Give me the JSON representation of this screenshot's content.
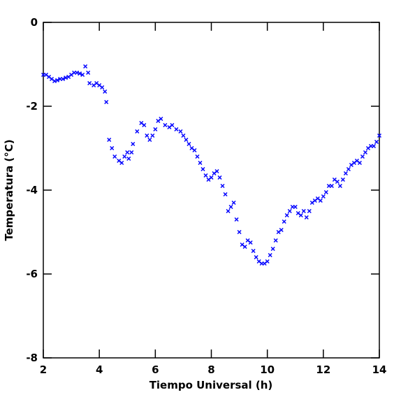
{
  "chart_data": {
    "type": "scatter",
    "x_label": "Tiempo Universal (h)",
    "y_label": "Temperatura (°C)",
    "xlim": [
      2,
      14
    ],
    "ylim": [
      -8,
      0
    ],
    "xticks": [
      2,
      4,
      6,
      8,
      10,
      12,
      14
    ],
    "yticks": [
      -8,
      -6,
      -4,
      -2,
      0
    ],
    "color": "#0000ff",
    "x": [
      2.0,
      2.1,
      2.2,
      2.3,
      2.4,
      2.5,
      2.6,
      2.7,
      2.8,
      2.9,
      3.0,
      3.1,
      3.2,
      3.3,
      3.4,
      3.5,
      3.6,
      3.65,
      3.8,
      3.9,
      4.0,
      4.1,
      4.2,
      4.25,
      4.35,
      4.45,
      4.55,
      4.7,
      4.8,
      4.9,
      5.0,
      5.05,
      5.15,
      5.2,
      5.35,
      5.5,
      5.6,
      5.7,
      5.8,
      5.9,
      6.0,
      6.1,
      6.2,
      6.35,
      6.5,
      6.6,
      6.75,
      6.9,
      7.0,
      7.1,
      7.2,
      7.3,
      7.4,
      7.5,
      7.6,
      7.7,
      7.8,
      7.9,
      8.0,
      8.1,
      8.2,
      8.3,
      8.4,
      8.5,
      8.6,
      8.7,
      8.8,
      8.9,
      9.0,
      9.1,
      9.2,
      9.3,
      9.4,
      9.5,
      9.6,
      9.7,
      9.8,
      9.9,
      10.0,
      10.1,
      10.2,
      10.3,
      10.4,
      10.5,
      10.6,
      10.7,
      10.8,
      10.9,
      11.0,
      11.1,
      11.2,
      11.3,
      11.4,
      11.5,
      11.6,
      11.7,
      11.8,
      11.9,
      12.0,
      12.1,
      12.2,
      12.3,
      12.4,
      12.5,
      12.6,
      12.7,
      12.8,
      12.9,
      13.0,
      13.1,
      13.2,
      13.3,
      13.4,
      13.5,
      13.6,
      13.7,
      13.8,
      13.9,
      14.0
    ],
    "values": [
      -1.25,
      -1.25,
      -1.3,
      -1.35,
      -1.4,
      -1.38,
      -1.35,
      -1.35,
      -1.32,
      -1.3,
      -1.25,
      -1.2,
      -1.2,
      -1.22,
      -1.25,
      -1.05,
      -1.2,
      -1.45,
      -1.5,
      -1.45,
      -1.5,
      -1.55,
      -1.65,
      -1.9,
      -2.8,
      -3.0,
      -3.2,
      -3.3,
      -3.35,
      -3.2,
      -3.1,
      -3.25,
      -3.1,
      -2.9,
      -2.6,
      -2.4,
      -2.45,
      -2.7,
      -2.8,
      -2.7,
      -2.55,
      -2.35,
      -2.3,
      -2.45,
      -2.5,
      -2.45,
      -2.55,
      -2.6,
      -2.7,
      -2.8,
      -2.9,
      -3.0,
      -3.05,
      -3.2,
      -3.35,
      -3.5,
      -3.65,
      -3.75,
      -3.7,
      -3.6,
      -3.55,
      -3.7,
      -3.9,
      -4.1,
      -4.5,
      -4.4,
      -4.3,
      -4.7,
      -5.0,
      -5.3,
      -5.35,
      -5.2,
      -5.25,
      -5.45,
      -5.6,
      -5.7,
      -5.75,
      -5.75,
      -5.7,
      -5.55,
      -5.4,
      -5.2,
      -5.0,
      -4.95,
      -4.75,
      -4.6,
      -4.5,
      -4.4,
      -4.4,
      -4.55,
      -4.6,
      -4.5,
      -4.65,
      -4.5,
      -4.3,
      -4.25,
      -4.2,
      -4.25,
      -4.15,
      -4.05,
      -3.9,
      -3.9,
      -3.75,
      -3.8,
      -3.9,
      -3.75,
      -3.6,
      -3.5,
      -3.4,
      -3.35,
      -3.3,
      -3.35,
      -3.2,
      -3.1,
      -3.0,
      -2.95,
      -2.95,
      -2.85,
      -2.7
    ]
  }
}
